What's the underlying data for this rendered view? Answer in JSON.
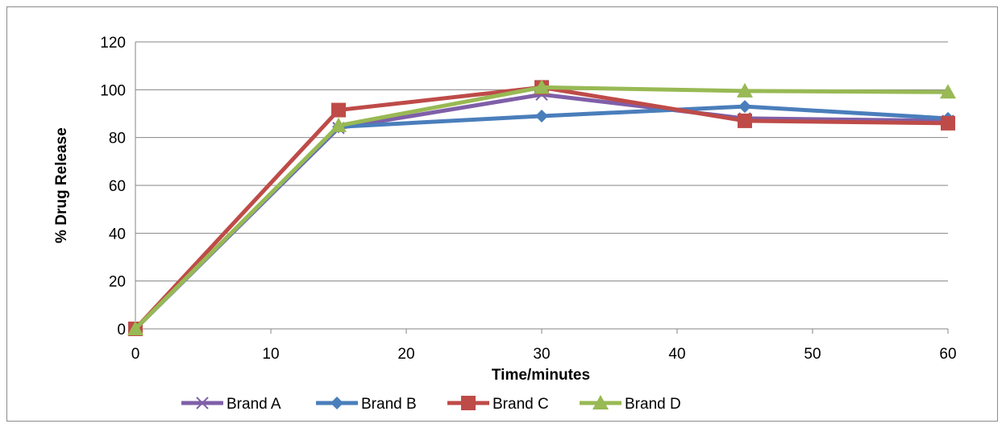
{
  "chart_data": {
    "type": "line",
    "title": "",
    "xlabel": "Time/minutes",
    "ylabel": "% Drug Release",
    "xlim": [
      0,
      60
    ],
    "ylim": [
      0,
      120
    ],
    "xticks": [
      0,
      10,
      20,
      30,
      40,
      50,
      60
    ],
    "yticks": [
      0,
      20,
      40,
      60,
      80,
      100,
      120
    ],
    "grid": "horizontal",
    "legend_position": "bottom",
    "x": [
      0,
      15,
      30,
      45,
      60
    ],
    "series": [
      {
        "name": "Brand A",
        "values": [
          0,
          84,
          98,
          88,
          87
        ],
        "color": "#7f5fa8",
        "marker": "x"
      },
      {
        "name": "Brand B",
        "values": [
          0,
          84.5,
          89,
          93,
          88
        ],
        "color": "#4a7ebb",
        "marker": "diamond"
      },
      {
        "name": "Brand C",
        "values": [
          0,
          91.5,
          101,
          87,
          86
        ],
        "color": "#be4b48",
        "marker": "square"
      },
      {
        "name": "Brand D",
        "values": [
          0,
          85,
          101,
          99.5,
          99
        ],
        "color": "#98b954",
        "marker": "triangle"
      }
    ]
  }
}
